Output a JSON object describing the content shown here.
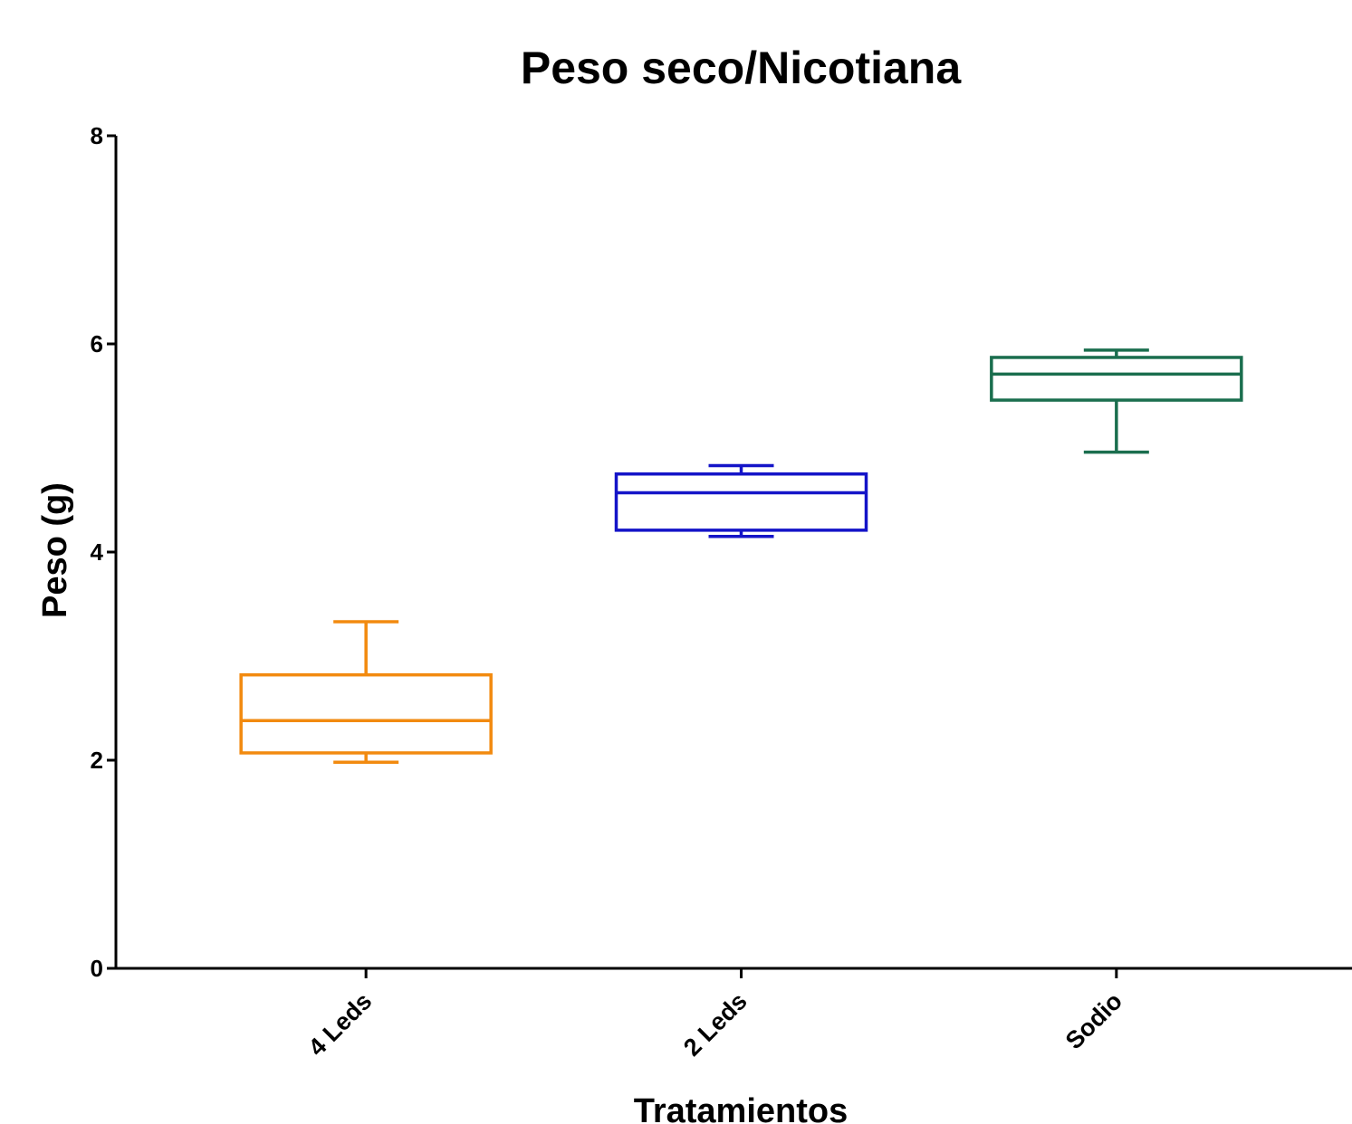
{
  "chart_data": {
    "type": "boxplot",
    "title": "Peso seco/Nicotiana",
    "xlabel": "Tratamientos",
    "ylabel": "Peso (g)",
    "ylim": [
      0,
      8
    ],
    "yticks": [
      0,
      2,
      4,
      6,
      8
    ],
    "grid": false,
    "categories": [
      "4 Leds",
      "2 Leds",
      "Sodio"
    ],
    "series": [
      {
        "category": "4 Leds",
        "color": "#f28a0f",
        "min": 1.98,
        "q1": 2.07,
        "median": 2.38,
        "q3": 2.82,
        "max": 3.33
      },
      {
        "category": "2 Leds",
        "color": "#1414c8",
        "min": 4.15,
        "q1": 4.21,
        "median": 4.57,
        "q3": 4.75,
        "max": 4.83
      },
      {
        "category": "Sodio",
        "color": "#1a6e4e",
        "min": 4.96,
        "q1": 5.46,
        "median": 5.71,
        "q3": 5.87,
        "max": 5.94
      }
    ]
  }
}
